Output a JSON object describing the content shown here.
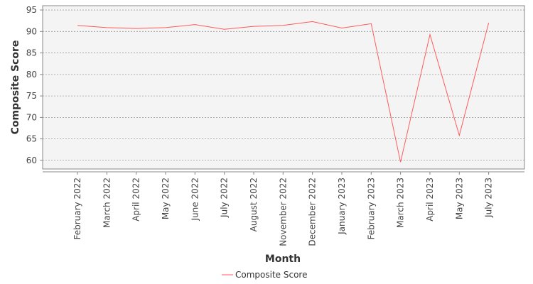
{
  "chart_data": {
    "type": "line",
    "title": "",
    "xlabel": "Month",
    "ylabel": "Composite Score",
    "ylim": [
      58,
      96
    ],
    "yticks": [
      60,
      65,
      70,
      75,
      80,
      85,
      90,
      95
    ],
    "grid": true,
    "legend_position": "bottom-center",
    "categories": [
      "February 2022",
      "March 2022",
      "April 2022",
      "May 2022",
      "June 2022",
      "July 2022",
      "August 2022",
      "November 2022",
      "December 2022",
      "January 2023",
      "February 2023",
      "March 2023",
      "April 2023",
      "May 2023",
      "July 2023"
    ],
    "series": [
      {
        "name": "Composite Score",
        "color": "#ff5a5a",
        "values": [
          91.4,
          90.9,
          90.7,
          90.9,
          91.6,
          90.5,
          91.2,
          91.4,
          92.3,
          90.8,
          91.8,
          59.6,
          89.3,
          65.8,
          92.0
        ]
      }
    ]
  }
}
